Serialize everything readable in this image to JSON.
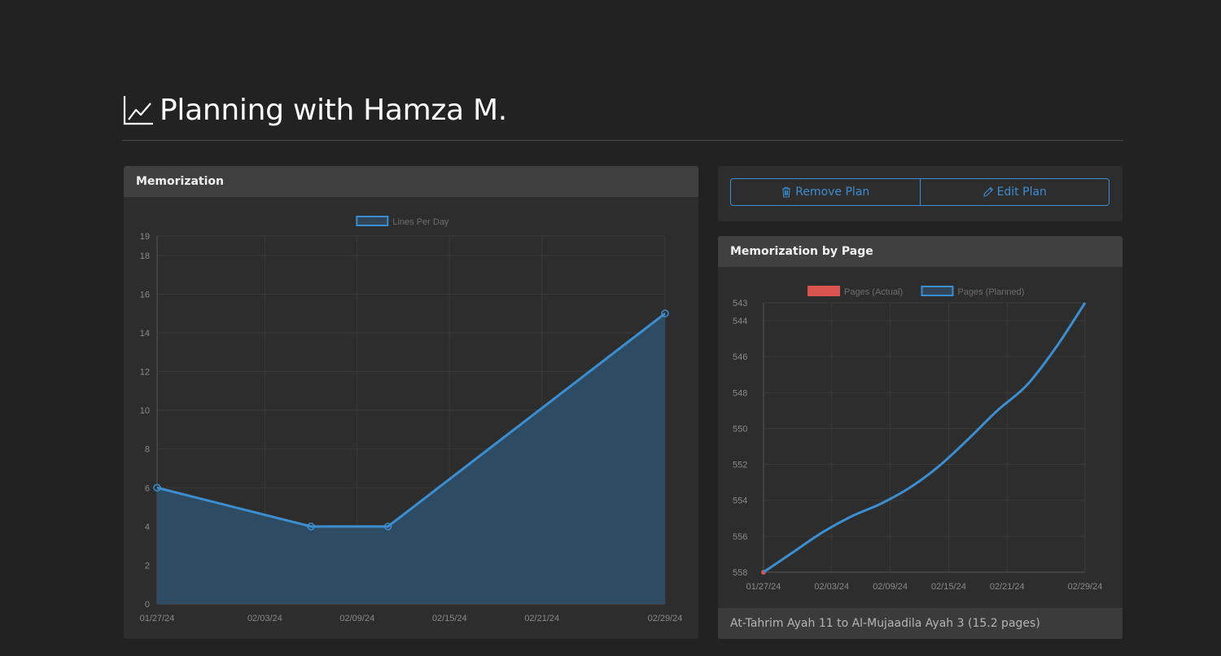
{
  "page": {
    "title": "Planning with Hamza M."
  },
  "memorization_card": {
    "header": "Memorization"
  },
  "actions": {
    "remove_label": "Remove Plan",
    "edit_label": "Edit Plan"
  },
  "by_page_card": {
    "header": "Memorization by Page",
    "footer": "At-Tahrim Ayah 11 to Al-Mujaadila Ayah 3 (15.2 pages)"
  },
  "colors": {
    "background": "#222222",
    "card": "#2d2d2d",
    "card_header": "#404040",
    "accent_blue": "#3d8ed0",
    "actual_red": "#d9534f",
    "area_fill": "#2d4d66"
  },
  "icons": {
    "title": "line-chart-icon",
    "remove": "trash-icon",
    "edit": "pencil-icon"
  },
  "chart_data": [
    {
      "type": "area",
      "x_axis": "dates",
      "xticks": [
        "01/27/24",
        "02/03/24",
        "02/09/24",
        "02/15/24",
        "02/21/24",
        "02/29/24"
      ],
      "yticks": [
        "0",
        "2",
        "4",
        "6",
        "8",
        "10",
        "12",
        "14",
        "16",
        "18",
        "19"
      ],
      "ylim": [
        0,
        19
      ],
      "xlim": [
        "2024-01-27",
        "2024-02-29"
      ],
      "grid": true,
      "legend_position": "top",
      "series": [
        {
          "name": "Lines Per Day",
          "color": "#3d8ed0",
          "x": [
            "2024-01-27",
            "2024-02-06",
            "2024-02-11",
            "2024-02-29"
          ],
          "y": [
            6,
            4,
            4,
            15
          ]
        }
      ]
    },
    {
      "type": "line",
      "x_axis": "dates",
      "xticks": [
        "01/27/24",
        "02/03/24",
        "02/09/24",
        "02/15/24",
        "02/21/24",
        "02/29/24"
      ],
      "yticks": [
        "558",
        "556",
        "554",
        "552",
        "550",
        "548",
        "546",
        "544",
        "543"
      ],
      "ylim": [
        558,
        543
      ],
      "y_reversed": true,
      "xlim": [
        "2024-01-27",
        "2024-02-29"
      ],
      "grid": true,
      "legend_position": "top",
      "series": [
        {
          "name": "Pages (Actual)",
          "color": "#d9534f",
          "x": [
            "2024-01-27"
          ],
          "y": [
            558
          ]
        },
        {
          "name": "Pages (Planned)",
          "color": "#3d8ed0",
          "x": [
            "2024-01-27",
            "2024-01-30",
            "2024-02-02",
            "2024-02-05",
            "2024-02-08",
            "2024-02-11",
            "2024-02-14",
            "2024-02-17",
            "2024-02-20",
            "2024-02-23",
            "2024-02-26",
            "2024-02-29"
          ],
          "y": [
            558.0,
            556.9,
            555.8,
            554.9,
            554.2,
            553.3,
            552.1,
            550.6,
            549.0,
            547.6,
            545.5,
            543.0
          ]
        }
      ]
    }
  ]
}
